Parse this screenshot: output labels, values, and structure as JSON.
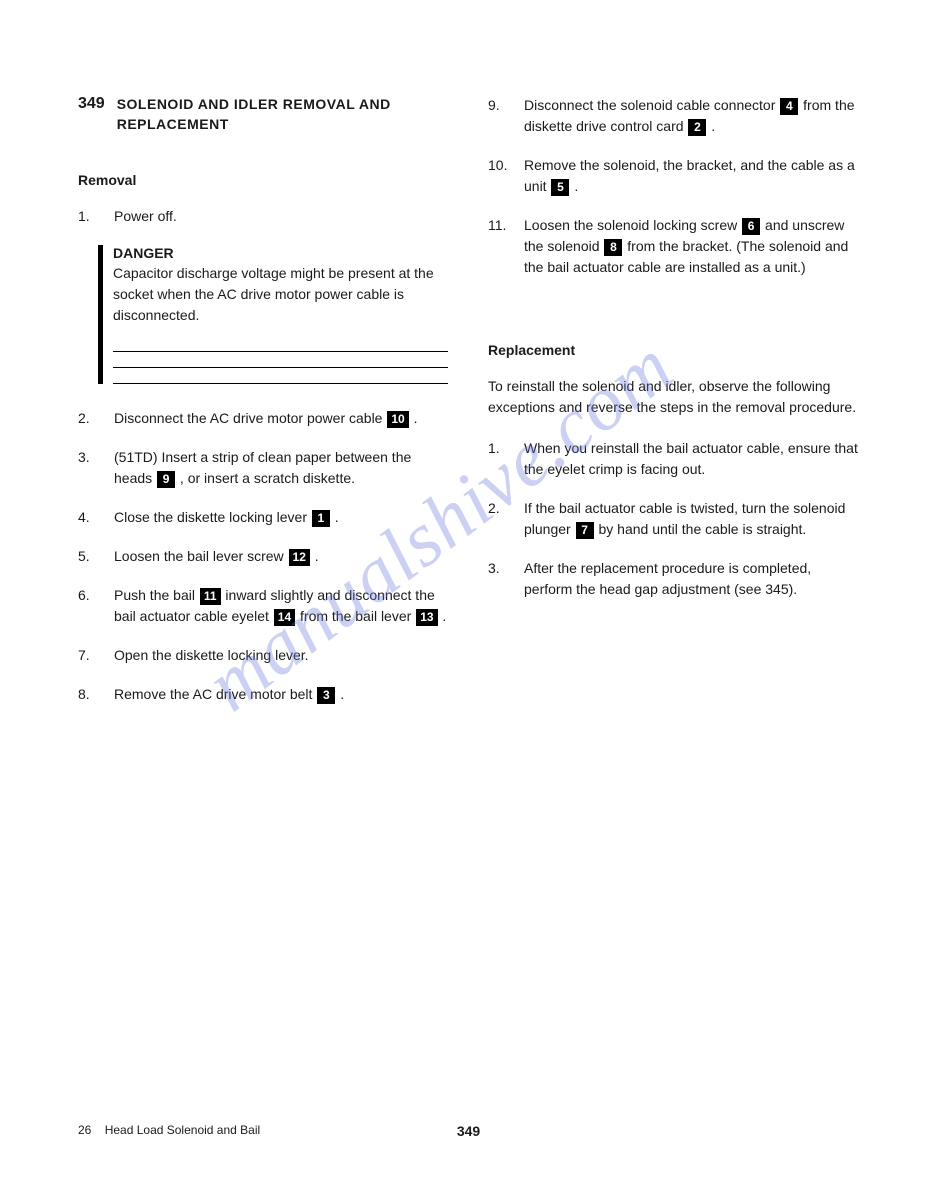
{
  "section_number": "349",
  "section_title_line1": "SOLENOID AND IDLER REMOVAL AND",
  "section_title_line2": "REPLACEMENT",
  "left": {
    "subheading": "Removal",
    "items": [
      {
        "num": "1.",
        "text": "Power off."
      }
    ],
    "danger": {
      "title": "DANGER",
      "text": "Capacitor discharge voltage might be present at the socket when the AC drive motor power cable is disconnected."
    },
    "items2": [
      {
        "num": "2.",
        "parts": [
          {
            "t": "Disconnect the AC drive motor power cable "
          },
          {
            "k": "10"
          },
          {
            "t": " ."
          }
        ]
      },
      {
        "num": "3.",
        "parts": [
          {
            "t": "(51TD)  Insert a strip of clean paper between the heads "
          },
          {
            "k": "9"
          },
          {
            "t": " , or insert a scratch diskette."
          }
        ]
      },
      {
        "num": "4.",
        "parts": [
          {
            "t": "Close the diskette locking lever "
          },
          {
            "k": "1"
          },
          {
            "t": " ."
          }
        ]
      },
      {
        "num": "5.",
        "parts": [
          {
            "t": "Loosen the bail lever screw "
          },
          {
            "k": "12"
          },
          {
            "t": " ."
          }
        ]
      },
      {
        "num": "6.",
        "parts": [
          {
            "t": "Push the bail "
          },
          {
            "k": "11"
          },
          {
            "t": " inward slightly and disconnect the bail actuator cable eyelet "
          },
          {
            "k": "14"
          },
          {
            "t": " from the bail lever "
          },
          {
            "k": "13"
          },
          {
            "t": " ."
          }
        ]
      },
      {
        "num": "7.",
        "parts": [
          {
            "t": "Open the diskette locking lever."
          }
        ]
      },
      {
        "num": "8.",
        "parts": [
          {
            "t": "Remove the AC drive motor belt "
          },
          {
            "k": "3"
          },
          {
            "t": " ."
          }
        ]
      }
    ]
  },
  "right": {
    "items": [
      {
        "num": "9.",
        "parts": [
          {
            "t": "Disconnect the solenoid cable connector "
          },
          {
            "k": "4"
          },
          {
            "t": " from the diskette drive control card "
          },
          {
            "k": "2"
          },
          {
            "t": " ."
          }
        ]
      },
      {
        "num": "10.",
        "parts": [
          {
            "t": "Remove the solenoid, the bracket, and the cable as a unit "
          },
          {
            "k": "5"
          },
          {
            "t": " ."
          }
        ]
      },
      {
        "num": "11.",
        "parts": [
          {
            "t": "Loosen the solenoid locking screw "
          },
          {
            "k": "6"
          },
          {
            "t": " and unscrew the solenoid "
          },
          {
            "k": "8"
          },
          {
            "t": " from the bracket.  (The solenoid and the bail actuator cable are installed as a unit.)"
          }
        ]
      }
    ],
    "subheading": "Replacement",
    "intro": "To reinstall the solenoid and idler, observe the following exceptions and reverse the steps in the removal procedure.",
    "items2": [
      {
        "num": "1.",
        "parts": [
          {
            "t": "When you reinstall the bail actuator cable, ensure that the eyelet crimp is facing out."
          }
        ]
      },
      {
        "num": "2.",
        "parts": [
          {
            "t": "If the bail actuator cable is twisted, turn the solenoid plunger "
          },
          {
            "k": "7"
          },
          {
            "t": " by hand until the cable is straight."
          }
        ]
      },
      {
        "num": "3.",
        "parts": [
          {
            "t": "After the replacement procedure is completed, perform the head gap adjustment (see 345)."
          }
        ]
      }
    ]
  },
  "watermark": "manualshive.com",
  "footer": {
    "page": "26",
    "title": "Head Load Solenoid and Bail",
    "section": "349"
  }
}
